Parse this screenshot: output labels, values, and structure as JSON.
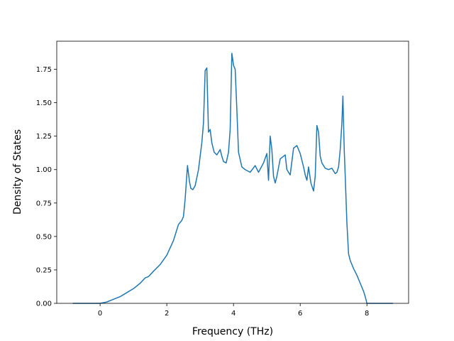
{
  "chart_data": {
    "type": "line",
    "title": "",
    "xlabel": "Frequency (THz)",
    "ylabel": "Density of States",
    "xlim": [
      -1.3,
      9.25
    ],
    "ylim": [
      0.0,
      1.96
    ],
    "xticks": [
      0,
      2,
      4,
      6,
      8
    ],
    "yticks": [
      0.0,
      0.25,
      0.5,
      0.75,
      1.0,
      1.25,
      1.5,
      1.75
    ],
    "xtick_labels": [
      "0",
      "2",
      "4",
      "6",
      "8"
    ],
    "ytick_labels": [
      "0.00",
      "0.25",
      "0.50",
      "0.75",
      "1.00",
      "1.25",
      "1.50",
      "1.75"
    ],
    "grid": false,
    "line_color": "#1f77b4",
    "series": [
      {
        "x": [
          -0.82,
          0.0,
          0.2,
          0.4,
          0.6,
          0.8,
          1.0,
          1.2,
          1.35,
          1.45,
          1.6,
          1.8,
          2.0,
          2.2,
          2.35,
          2.45,
          2.5,
          2.55,
          2.62,
          2.68,
          2.72,
          2.78,
          2.85,
          2.95,
          3.05,
          3.1,
          3.15,
          3.2,
          3.25,
          3.3,
          3.35,
          3.42,
          3.5,
          3.6,
          3.65,
          3.7,
          3.78,
          3.85,
          3.9,
          3.95,
          4.0,
          4.05,
          4.1,
          4.15,
          4.25,
          4.35,
          4.5,
          4.65,
          4.75,
          4.9,
          5.0,
          5.05,
          5.1,
          5.15,
          5.2,
          5.25,
          5.3,
          5.4,
          5.5,
          5.55,
          5.6,
          5.7,
          5.8,
          5.9,
          6.0,
          6.1,
          6.15,
          6.2,
          6.25,
          6.32,
          6.4,
          6.45,
          6.5,
          6.55,
          6.6,
          6.65,
          6.75,
          6.85,
          6.95,
          7.05,
          7.1,
          7.15,
          7.2,
          7.25,
          7.28,
          7.32,
          7.35,
          7.4,
          7.45,
          7.5,
          7.6,
          7.7,
          7.8,
          7.9,
          7.95,
          8.0,
          8.78
        ],
        "y": [
          0.0,
          0.0,
          0.01,
          0.03,
          0.05,
          0.08,
          0.11,
          0.15,
          0.19,
          0.2,
          0.24,
          0.29,
          0.36,
          0.47,
          0.59,
          0.62,
          0.65,
          0.78,
          1.03,
          0.91,
          0.86,
          0.85,
          0.88,
          1.0,
          1.2,
          1.35,
          1.74,
          1.76,
          1.28,
          1.3,
          1.2,
          1.13,
          1.11,
          1.15,
          1.1,
          1.06,
          1.05,
          1.13,
          1.3,
          1.87,
          1.78,
          1.75,
          1.45,
          1.13,
          1.02,
          1.0,
          0.98,
          1.03,
          0.98,
          1.05,
          1.12,
          0.92,
          1.25,
          1.15,
          0.95,
          0.9,
          0.95,
          1.08,
          1.1,
          1.11,
          1.0,
          0.96,
          1.16,
          1.18,
          1.12,
          1.02,
          0.96,
          0.92,
          1.02,
          0.9,
          0.84,
          0.95,
          1.33,
          1.28,
          1.1,
          1.05,
          1.01,
          1.0,
          1.01,
          0.97,
          0.98,
          1.02,
          1.15,
          1.35,
          1.55,
          1.15,
          0.95,
          0.6,
          0.37,
          0.32,
          0.26,
          0.21,
          0.15,
          0.09,
          0.05,
          0.0,
          0.0
        ]
      }
    ]
  }
}
